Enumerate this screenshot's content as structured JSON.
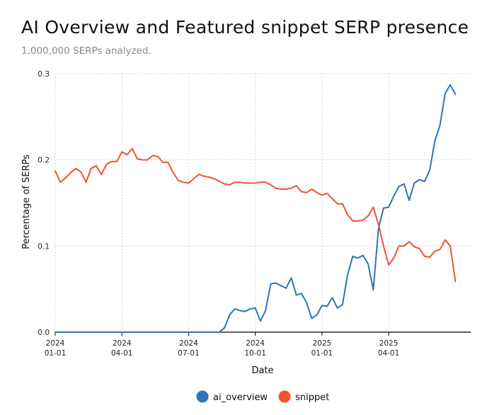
{
  "chart_data": {
    "type": "line",
    "title": "AI Overview and Featured snippet SERP presence",
    "subtitle": "1,000,000 SERPs analyzed.",
    "xlabel": "Date",
    "ylabel": "Percentage of SERPs",
    "ylim": [
      0,
      0.3
    ],
    "yticks": [
      "0.0",
      "0.1",
      "0.2",
      "0.3"
    ],
    "xticks": [
      {
        "year": "2024",
        "date": "01-01",
        "week": 0
      },
      {
        "year": "2024",
        "date": "04-01",
        "week": 13
      },
      {
        "year": "2024",
        "date": "07-01",
        "week": 26
      },
      {
        "year": "2024",
        "date": "10-01",
        "week": 39
      },
      {
        "year": "2025",
        "date": "01-01",
        "week": 52
      },
      {
        "year": "2025",
        "date": "04-01",
        "week": 65
      }
    ],
    "x_range_weeks": [
      0,
      81
    ],
    "grid": true,
    "legend_position": "bottom-center",
    "series": [
      {
        "name": "ai_overview",
        "color": "#2f73b5",
        "values": [
          0,
          0,
          0,
          0,
          0,
          0,
          0,
          0,
          0,
          0,
          0,
          0,
          0,
          0,
          0,
          0,
          0,
          0,
          0,
          0,
          0,
          0,
          0,
          0,
          0,
          0,
          0,
          0,
          0,
          0,
          0,
          0,
          0,
          0.005,
          0.02,
          0.027,
          0.025,
          0.024,
          0.027,
          0.028,
          0.013,
          0.025,
          0.056,
          0.057,
          0.054,
          0.051,
          0.063,
          0.043,
          0.045,
          0.034,
          0.016,
          0.02,
          0.031,
          0.03,
          0.04,
          0.028,
          0.032,
          0.067,
          0.088,
          0.086,
          0.089,
          0.079,
          0.049,
          0.12,
          0.144,
          0.145,
          0.158,
          0.169,
          0.172,
          0.153,
          0.173,
          0.177,
          0.175,
          0.188,
          0.222,
          0.24,
          0.277,
          0.287,
          0.276
        ]
      },
      {
        "name": "snippet",
        "color": "#f0532c",
        "values": [
          0.187,
          0.174,
          0.179,
          0.185,
          0.19,
          0.186,
          0.174,
          0.19,
          0.193,
          0.183,
          0.195,
          0.198,
          0.198,
          0.209,
          0.206,
          0.213,
          0.201,
          0.2,
          0.2,
          0.205,
          0.204,
          0.197,
          0.197,
          0.185,
          0.176,
          0.174,
          0.173,
          0.178,
          0.183,
          0.181,
          0.18,
          0.178,
          0.175,
          0.172,
          0.171,
          0.174,
          0.174,
          0.173,
          0.173,
          0.173,
          0.174,
          0.174,
          0.171,
          0.167,
          0.166,
          0.166,
          0.167,
          0.17,
          0.163,
          0.162,
          0.166,
          0.162,
          0.159,
          0.161,
          0.155,
          0.149,
          0.149,
          0.136,
          0.129,
          0.129,
          0.13,
          0.135,
          0.145,
          0.125,
          0.1,
          0.078,
          0.086,
          0.1,
          0.1,
          0.105,
          0.099,
          0.097,
          0.088,
          0.087,
          0.094,
          0.096,
          0.107,
          0.1,
          0.059
        ]
      }
    ]
  }
}
